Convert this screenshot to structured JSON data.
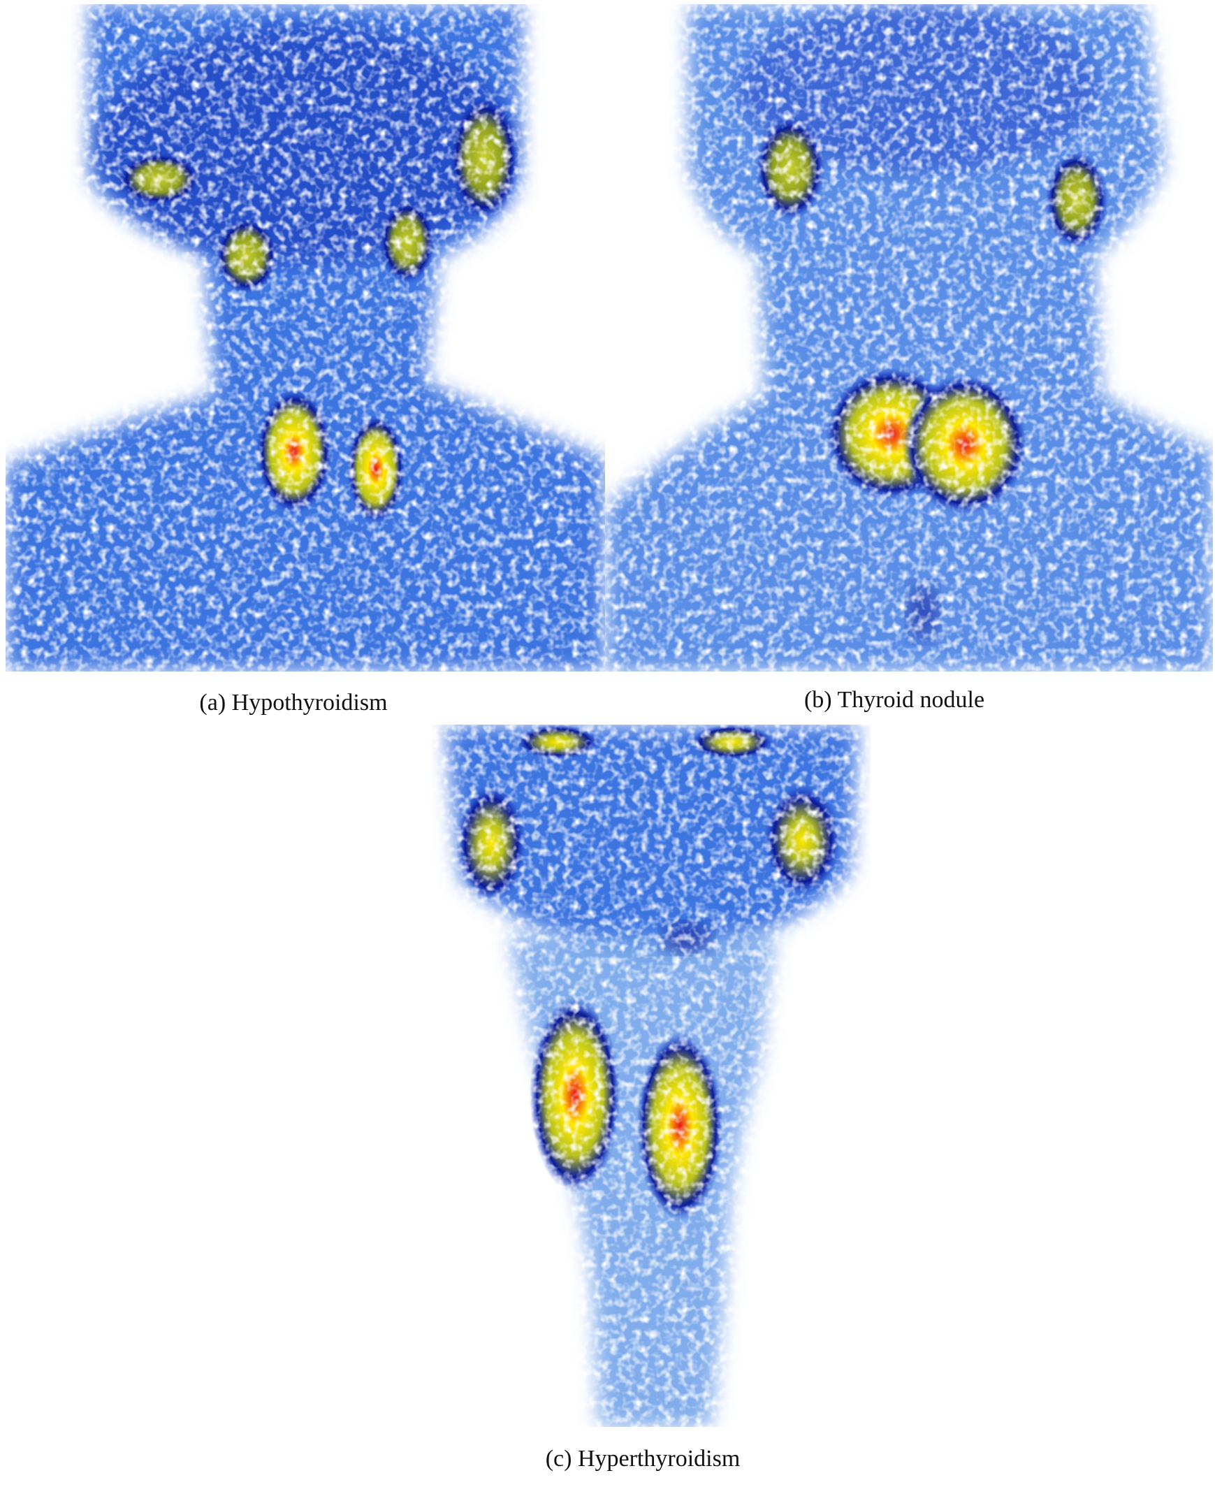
{
  "panels": [
    {
      "id": "a",
      "caption": "(a) Hypothyroidism"
    },
    {
      "id": "b",
      "caption": "(b) Thyroid nodule"
    },
    {
      "id": "c",
      "caption": "(c) Hyperthyroidism"
    }
  ],
  "colors": {
    "background": "#ffffff",
    "noise_light": "#7fb0ea",
    "low_uptake": "#2a56d8",
    "medium_uptake": "#0a1a9a",
    "high_uptake": "#b8c21e",
    "very_high_uptake": "#ffe800",
    "peak_uptake": "#e8141a"
  }
}
